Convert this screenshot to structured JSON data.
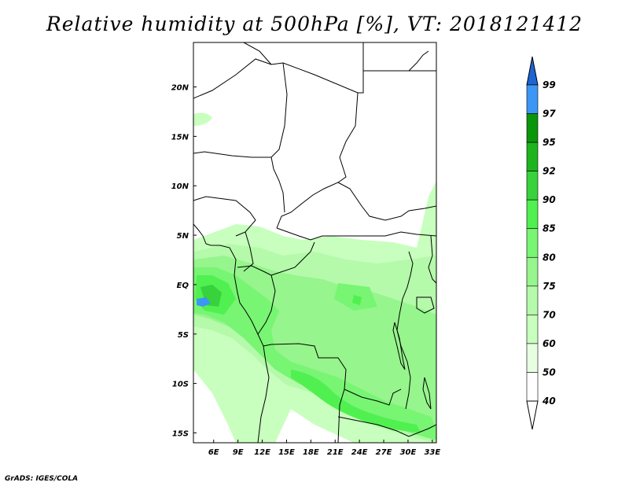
{
  "title": "Relative humidity at 500hPa [%], VT: 2018121412",
  "credit": "GrADS: IGES/COLA",
  "map": {
    "lon_range": [
      3.5,
      33.5
    ],
    "lat_range": [
      -16,
      24.5
    ],
    "lon_ticks": [
      "6E",
      "9E",
      "12E",
      "15E",
      "18E",
      "21E",
      "24E",
      "27E",
      "30E",
      "33E"
    ],
    "lat_ticks": [
      "20N",
      "15N",
      "10N",
      "5N",
      "EQ",
      "5S",
      "10S",
      "15S"
    ]
  },
  "colorbar": {
    "labels": [
      "99",
      "97",
      "95",
      "92",
      "90",
      "85",
      "80",
      "75",
      "70",
      "60",
      "50",
      "40"
    ],
    "colors": [
      "#1e64d2",
      "#3c96f5",
      "#0a960a",
      "#1eb41e",
      "#37d23c",
      "#50f050",
      "#78f573",
      "#96f58c",
      "#b4faaa",
      "#c8ffbe",
      "#e6ffe1",
      "#ffffff"
    ]
  }
}
